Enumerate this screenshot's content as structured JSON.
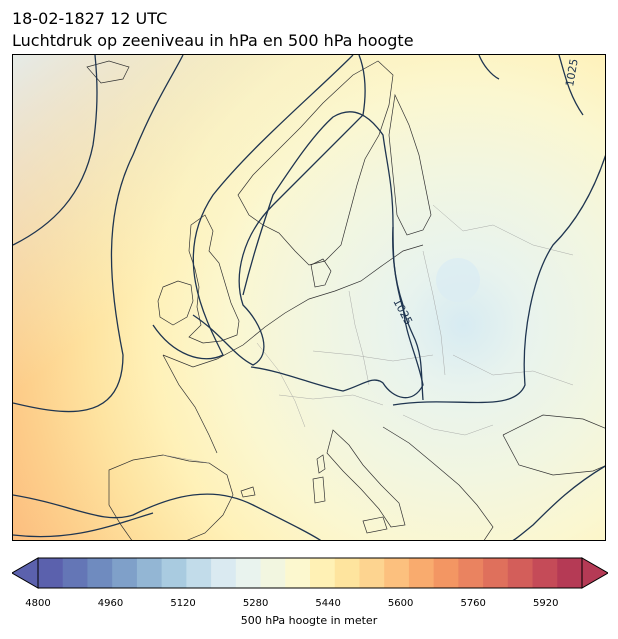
{
  "title": {
    "line1": "18-02-1827 12 UTC",
    "line2": "Luchtdruk op zeeniveau in hPa en 500 hPa hoogte"
  },
  "map": {
    "isobar_labels": [
      "1025",
      "1025"
    ],
    "contour_color": "#1f3550",
    "coast_color": "#333333",
    "border_color": "#999999"
  },
  "colorbar": {
    "label": "500 hPa hoogte in meter",
    "min": 4800,
    "max": 6000,
    "ticks": [
      "4800",
      "4960",
      "5120",
      "5280",
      "5440",
      "5600",
      "5760",
      "5920"
    ],
    "colors": [
      "#5b61ad",
      "#6476b6",
      "#6f8bbf",
      "#7fa0c9",
      "#93b6d4",
      "#a9cbe0",
      "#c2dcea",
      "#daeaf1",
      "#e9f3ee",
      "#f2f6e0",
      "#fcf8cf",
      "#fff1b5",
      "#fee49e",
      "#fdd490",
      "#fcc07e",
      "#f9ab6e",
      "#f39663",
      "#ea8360",
      "#df705c",
      "#d35e5a",
      "#c54b58",
      "#b53a55"
    ]
  }
}
